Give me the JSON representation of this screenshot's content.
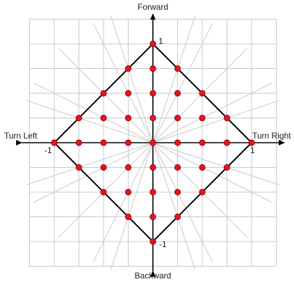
{
  "directions": {
    "forward": "Forward",
    "backward": "Backward",
    "left": "Turn Left",
    "right": "Turn Right"
  },
  "ticks": {
    "top": "1",
    "bottom": "-1",
    "left": "-1",
    "right": "1"
  },
  "colors": {
    "point": "#e8141b",
    "point_stroke": "#8f0000",
    "grid": "#c8c8c8",
    "axis": "#000000",
    "boundary": "#000000"
  },
  "diagram": {
    "grid_step": 0.25,
    "grid_extent": 1.25,
    "ray_angles_deg": [
      18.43,
      26.57,
      45,
      63.43,
      71.57,
      108.43,
      116.57,
      135,
      153.43,
      161.57
    ],
    "boundary": "|x| + |y| = 1",
    "points": [
      [
        0,
        1
      ],
      [
        -0.25,
        0.75
      ],
      [
        0,
        0.75
      ],
      [
        0.25,
        0.75
      ],
      [
        -0.5,
        0.5
      ],
      [
        -0.25,
        0.5
      ],
      [
        0,
        0.5
      ],
      [
        0.25,
        0.5
      ],
      [
        0.5,
        0.5
      ],
      [
        -0.75,
        0.25
      ],
      [
        -0.5,
        0.25
      ],
      [
        -0.25,
        0.25
      ],
      [
        0,
        0.25
      ],
      [
        0.25,
        0.25
      ],
      [
        0.5,
        0.25
      ],
      [
        0.75,
        0.25
      ],
      [
        -1,
        0
      ],
      [
        -0.75,
        0
      ],
      [
        -0.5,
        0
      ],
      [
        -0.25,
        0
      ],
      [
        0,
        0
      ],
      [
        0.25,
        0
      ],
      [
        0.5,
        0
      ],
      [
        0.75,
        0
      ],
      [
        1,
        0
      ],
      [
        -0.75,
        -0.25
      ],
      [
        -0.5,
        -0.25
      ],
      [
        -0.25,
        -0.25
      ],
      [
        0,
        -0.25
      ],
      [
        0.25,
        -0.25
      ],
      [
        0.5,
        -0.25
      ],
      [
        0.75,
        -0.25
      ],
      [
        -0.5,
        -0.5
      ],
      [
        -0.25,
        -0.5
      ],
      [
        0,
        -0.5
      ],
      [
        0.25,
        -0.5
      ],
      [
        0.5,
        -0.5
      ],
      [
        -0.25,
        -0.75
      ],
      [
        0,
        -0.75
      ],
      [
        0.25,
        -0.75
      ],
      [
        0,
        -1
      ]
    ]
  }
}
